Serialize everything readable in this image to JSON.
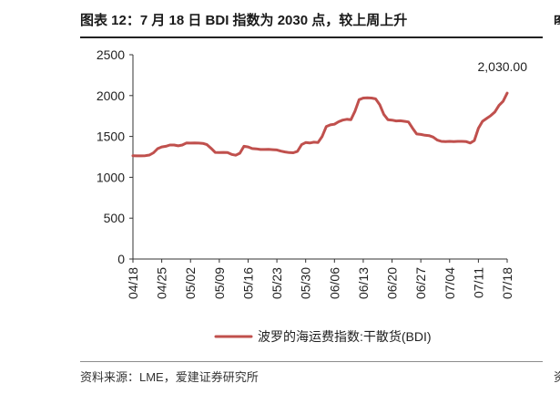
{
  "figure": {
    "title": "图表 12：7 月 18 日 BDI 指数为 2030 点，较上周上升",
    "source": "资料来源：LME，爱建证券研究所",
    "edge_glyph_top": "图",
    "edge_glyph_bottom": "资"
  },
  "chart_data": {
    "type": "line",
    "title": "图表 12：7 月 18 日 BDI 指数为 2030 点，较上周上升",
    "xlabel": "",
    "ylabel": "",
    "ylim": [
      0,
      2500
    ],
    "yticks": [
      0,
      500,
      1000,
      1500,
      2000,
      2500
    ],
    "ytick_labels": [
      "0",
      "500",
      "1000",
      "1500",
      "2000",
      "2500"
    ],
    "x_start_day": 0,
    "x_end_day": 91,
    "xticks": [
      {
        "label": "04/18",
        "day": 0
      },
      {
        "label": "04/25",
        "day": 7
      },
      {
        "label": "05/02",
        "day": 14
      },
      {
        "label": "05/09",
        "day": 21
      },
      {
        "label": "05/16",
        "day": 28
      },
      {
        "label": "05/23",
        "day": 35
      },
      {
        "label": "05/30",
        "day": 42
      },
      {
        "label": "06/06",
        "day": 49
      },
      {
        "label": "06/13",
        "day": 56
      },
      {
        "label": "06/20",
        "day": 63
      },
      {
        "label": "06/27",
        "day": 70
      },
      {
        "label": "07/04",
        "day": 77
      },
      {
        "label": "07/11",
        "day": 84
      },
      {
        "label": "07/18",
        "day": 91
      }
    ],
    "grid": false,
    "legend_position": "bottom",
    "line_color": "#c0504d",
    "series": [
      {
        "name": "波罗的海运费指数:干散货(BDI)",
        "x": [
          0,
          1,
          2,
          3,
          4,
          5,
          6,
          7,
          8,
          9,
          10,
          11,
          12,
          13,
          14,
          15,
          16,
          17,
          18,
          19,
          20,
          21,
          22,
          23,
          24,
          25,
          26,
          27,
          28,
          29,
          30,
          31,
          32,
          33,
          34,
          35,
          36,
          37,
          38,
          39,
          40,
          41,
          42,
          43,
          44,
          45,
          46,
          47,
          48,
          49,
          50,
          51,
          52,
          53,
          54,
          55,
          56,
          57,
          58,
          59,
          60,
          61,
          62,
          63,
          64,
          65,
          66,
          67,
          68,
          69,
          70,
          71,
          72,
          73,
          74,
          75,
          76,
          77,
          78,
          79,
          80,
          81,
          82,
          83,
          84,
          85,
          86,
          87,
          88,
          89,
          90,
          91
        ],
        "values": [
          1265,
          1262,
          1262,
          1265,
          1272,
          1300,
          1350,
          1372,
          1380,
          1395,
          1395,
          1385,
          1395,
          1420,
          1418,
          1420,
          1418,
          1415,
          1400,
          1355,
          1305,
          1302,
          1305,
          1302,
          1280,
          1270,
          1295,
          1380,
          1372,
          1352,
          1348,
          1340,
          1340,
          1342,
          1338,
          1335,
          1320,
          1310,
          1302,
          1300,
          1318,
          1400,
          1425,
          1420,
          1430,
          1425,
          1500,
          1620,
          1642,
          1650,
          1680,
          1700,
          1710,
          1705,
          1810,
          1950,
          1970,
          1972,
          1970,
          1960,
          1890,
          1770,
          1705,
          1700,
          1690,
          1692,
          1685,
          1678,
          1600,
          1530,
          1525,
          1515,
          1510,
          1492,
          1455,
          1440,
          1438,
          1440,
          1438,
          1440,
          1440,
          1438,
          1420,
          1450,
          1600,
          1685,
          1720,
          1755,
          1800,
          1880,
          1930,
          2030
        ]
      }
    ],
    "annotations": [
      {
        "text": "2,030.00",
        "x": 91,
        "y": 2030
      }
    ]
  }
}
